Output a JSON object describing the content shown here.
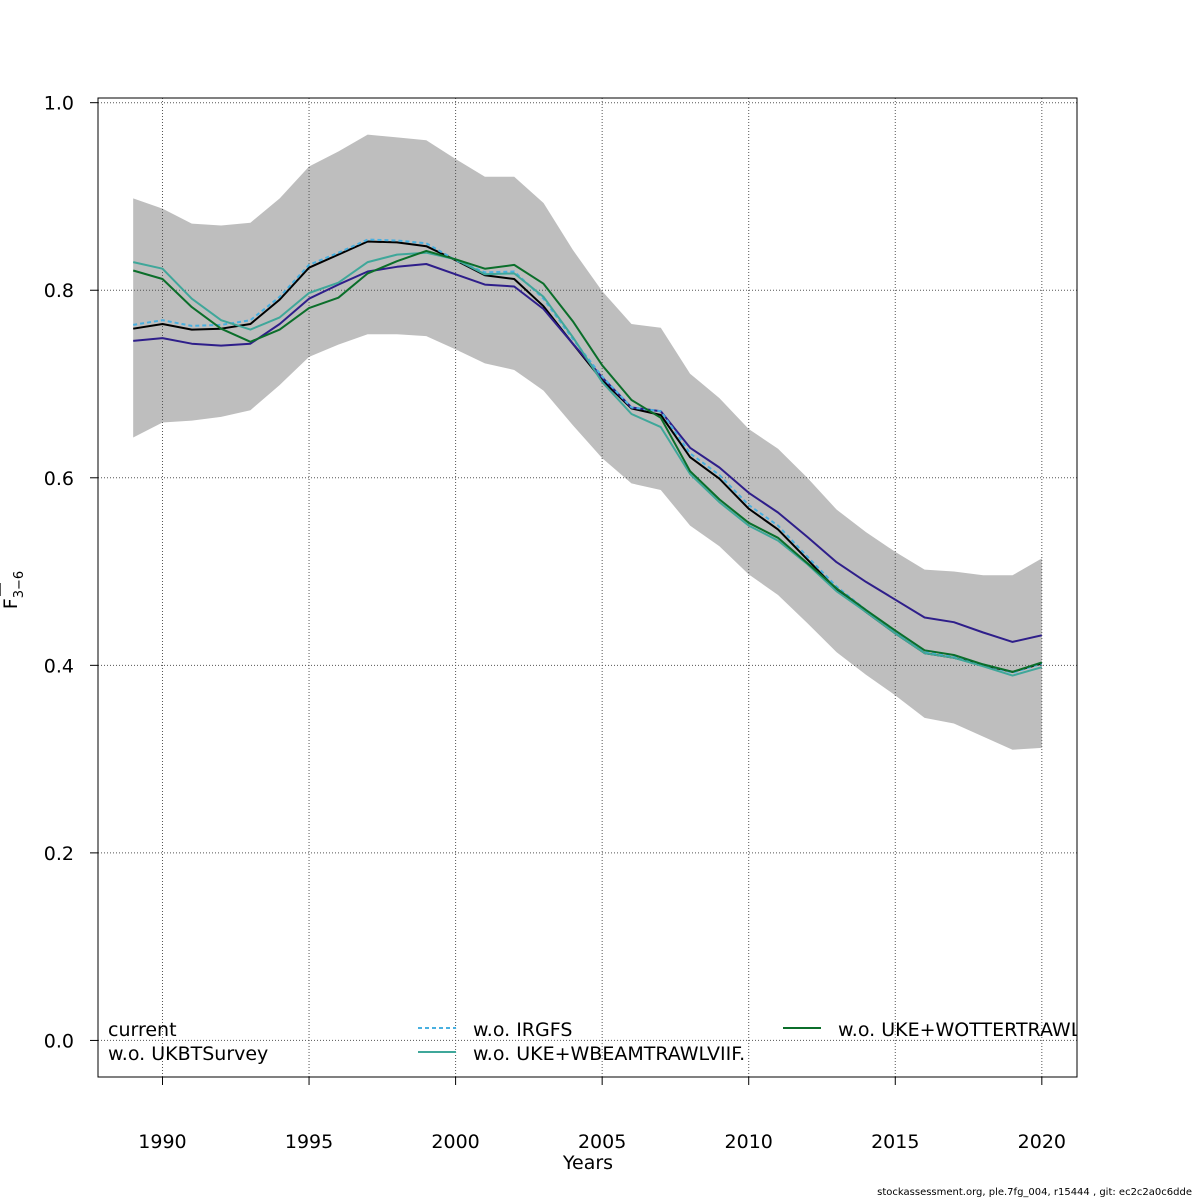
{
  "chart_data": {
    "type": "line",
    "title": "",
    "xlabel": "Years",
    "ylabel_main": "F",
    "ylabel_sub": "3−6",
    "xlim": [
      1987.8,
      2021.2
    ],
    "ylim": [
      -0.039,
      1.005
    ],
    "xticks": [
      1990,
      1995,
      2000,
      2005,
      2010,
      2015,
      2020
    ],
    "yticks": [
      0.0,
      0.2,
      0.4,
      0.6,
      0.8,
      1.0
    ],
    "xtick_labels": [
      "1990",
      "1995",
      "2000",
      "2005",
      "2010",
      "2015",
      "2020"
    ],
    "ytick_labels": [
      "0.0",
      "0.2",
      "0.4",
      "0.6",
      "0.8",
      "1.0"
    ],
    "grid": true,
    "legend_position": "bottom",
    "x": [
      1989,
      1990,
      1991,
      1992,
      1993,
      1994,
      1995,
      1996,
      1997,
      1998,
      1999,
      2000,
      2001,
      2002,
      2003,
      2004,
      2005,
      2006,
      2007,
      2008,
      2009,
      2010,
      2011,
      2012,
      2013,
      2014,
      2015,
      2016,
      2017,
      2018,
      2019,
      2020
    ],
    "confidence_band": {
      "color": "#bebebe",
      "upper": [
        0.898,
        0.887,
        0.871,
        0.869,
        0.872,
        0.898,
        0.932,
        0.948,
        0.966,
        0.963,
        0.96,
        0.94,
        0.921,
        0.921,
        0.893,
        0.843,
        0.799,
        0.764,
        0.76,
        0.711,
        0.685,
        0.652,
        0.631,
        0.6,
        0.566,
        0.542,
        0.521,
        0.502,
        0.5,
        0.496,
        0.496,
        0.514
      ],
      "lower": [
        0.643,
        0.659,
        0.661,
        0.665,
        0.672,
        0.699,
        0.729,
        0.742,
        0.753,
        0.753,
        0.751,
        0.737,
        0.722,
        0.715,
        0.693,
        0.656,
        0.621,
        0.594,
        0.587,
        0.549,
        0.527,
        0.497,
        0.475,
        0.445,
        0.414,
        0.39,
        0.368,
        0.344,
        0.338,
        0.324,
        0.31,
        0.312
      ]
    },
    "series": [
      {
        "name": "current",
        "color": "#000000",
        "dash": "",
        "values": [
          0.759,
          0.764,
          0.758,
          0.759,
          0.764,
          0.79,
          0.824,
          0.838,
          0.852,
          0.851,
          0.847,
          0.832,
          0.816,
          0.812,
          0.783,
          0.743,
          0.704,
          0.674,
          0.667,
          0.622,
          0.599,
          0.567,
          0.545,
          0.513,
          0.481,
          0.457,
          0.434,
          0.413,
          0.408,
          0.4,
          0.393,
          0.402
        ]
      },
      {
        "name": "w.o. UKBTSurvey",
        "color": "#2e1e8a",
        "dash": "",
        "values": [
          0.746,
          0.749,
          0.743,
          0.741,
          0.743,
          0.764,
          0.791,
          0.806,
          0.82,
          0.825,
          0.828,
          0.817,
          0.806,
          0.804,
          0.78,
          0.743,
          0.707,
          0.675,
          0.671,
          0.632,
          0.611,
          0.584,
          0.563,
          0.537,
          0.51,
          0.489,
          0.47,
          0.451,
          0.446,
          0.435,
          0.425,
          0.432
        ]
      },
      {
        "name": "w.o. IRGFS",
        "color": "#49b0e0",
        "dash": "4,3",
        "values": [
          0.763,
          0.768,
          0.762,
          0.763,
          0.768,
          0.793,
          0.827,
          0.84,
          0.854,
          0.853,
          0.85,
          0.832,
          0.819,
          0.82,
          0.791,
          0.748,
          0.708,
          0.675,
          0.671,
          0.626,
          0.603,
          0.571,
          0.549,
          0.516,
          0.484,
          0.459,
          0.435,
          0.414,
          0.409,
          0.401,
          0.392,
          0.402
        ]
      },
      {
        "name": "w.o. UKE+WBEAMTRAWLVIIF.",
        "color": "#3fa79a",
        "dash": "",
        "values": [
          0.83,
          0.823,
          0.791,
          0.768,
          0.758,
          0.771,
          0.797,
          0.808,
          0.83,
          0.838,
          0.84,
          0.833,
          0.817,
          0.818,
          0.793,
          0.75,
          0.702,
          0.668,
          0.654,
          0.604,
          0.574,
          0.549,
          0.533,
          0.508,
          0.479,
          0.457,
          0.434,
          0.413,
          0.408,
          0.399,
          0.389,
          0.398
        ]
      },
      {
        "name": "w.o. UKE+WOTTERTRAWL",
        "color": "#0b6e2a",
        "dash": "",
        "values": [
          0.821,
          0.812,
          0.782,
          0.759,
          0.745,
          0.758,
          0.781,
          0.792,
          0.818,
          0.831,
          0.842,
          0.833,
          0.823,
          0.827,
          0.807,
          0.767,
          0.72,
          0.683,
          0.664,
          0.607,
          0.577,
          0.552,
          0.536,
          0.509,
          0.482,
          0.459,
          0.437,
          0.416,
          0.411,
          0.401,
          0.393,
          0.403
        ]
      }
    ]
  },
  "footer_text": "stockassessment.org, ple.7fg_004, r15444 , git: ec2c2a0c6dde"
}
